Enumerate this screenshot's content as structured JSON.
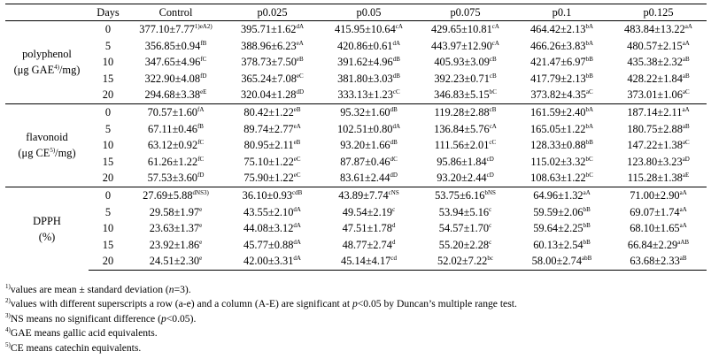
{
  "table": {
    "headers": [
      "",
      "Days",
      "Control",
      "p0.025",
      "p0.05",
      "p0.075",
      "p0.1",
      "p0.125"
    ],
    "groups": [
      {
        "label_main": "polyphenol",
        "label_unit_pre": "(μg GAE",
        "label_unit_sup": "4)",
        "label_unit_post": "/mg)",
        "rows": [
          {
            "day": "0",
            "cells": [
              [
                "377.10±7.77",
                "1)eA2)"
              ],
              [
                "395.71±1.62",
                "dA"
              ],
              [
                "415.95±10.64",
                "cA"
              ],
              [
                "429.65±10.81",
                "cA"
              ],
              [
                "464.42±2.13",
                "bA"
              ],
              [
                "483.84±13.22",
                "aA"
              ]
            ]
          },
          {
            "day": "5",
            "cells": [
              [
                "356.85±0.94",
                "fB"
              ],
              [
                "388.96±6.23",
                "eA"
              ],
              [
                "420.86±0.61",
                "dA"
              ],
              [
                "443.97±12.90",
                "cA"
              ],
              [
                "466.26±3.83",
                "bA"
              ],
              [
                "480.57±2.15",
                "aA"
              ]
            ]
          },
          {
            "day": "10",
            "cells": [
              [
                "347.65±4.96",
                "fC"
              ],
              [
                "378.73±7.50",
                "eB"
              ],
              [
                "391.62±4.96",
                "dB"
              ],
              [
                "405.93±3.09",
                "cB"
              ],
              [
                "421.47±6.97",
                "bB"
              ],
              [
                "435.38±2.32",
                "aB"
              ]
            ]
          },
          {
            "day": "15",
            "cells": [
              [
                "322.90±4.08",
                "fD"
              ],
              [
                "365.24±7.08",
                "eC"
              ],
              [
                "381.80±3.03",
                "dB"
              ],
              [
                "392.23±0.71",
                "cB"
              ],
              [
                "417.79±2.13",
                "bB"
              ],
              [
                "428.22±1.84",
                "aB"
              ]
            ]
          },
          {
            "day": "20",
            "cells": [
              [
                "294.68±3.38",
                "eE"
              ],
              [
                "320.04±1.28",
                "dD"
              ],
              [
                "333.13±1.23",
                "cC"
              ],
              [
                "346.83±5.15",
                "bC"
              ],
              [
                "373.82±4.35",
                "aC"
              ],
              [
                "373.01±1.06",
                "aC"
              ]
            ]
          }
        ]
      },
      {
        "label_main": "flavonoid",
        "label_unit_pre": "(μg CE",
        "label_unit_sup": "5)",
        "label_unit_post": "/mg)",
        "rows": [
          {
            "day": "0",
            "cells": [
              [
                "70.57±1.60",
                "fA"
              ],
              [
                "80.42±1.22",
                "eB"
              ],
              [
                "95.32±1.60",
                "dB"
              ],
              [
                "119.28±2.88",
                "cB"
              ],
              [
                "161.59±2.40",
                "bA"
              ],
              [
                "187.14±2.11",
                "aA"
              ]
            ]
          },
          {
            "day": "5",
            "cells": [
              [
                "67.11±0.46",
                "fB"
              ],
              [
                "89.74±2.77",
                "eA"
              ],
              [
                "102.51±0.80",
                "dA"
              ],
              [
                "136.84±5.76",
                "cA"
              ],
              [
                "165.05±1.22",
                "bA"
              ],
              [
                "180.75±2.88",
                "aB"
              ]
            ]
          },
          {
            "day": "10",
            "cells": [
              [
                "63.12±0.92",
                "fC"
              ],
              [
                "80.95±2.11",
                "eB"
              ],
              [
                "93.20±1.66",
                "dB"
              ],
              [
                "111.56±2.01",
                "cC"
              ],
              [
                "128.33±0.88",
                "bB"
              ],
              [
                "147.22±1.38",
                "aC"
              ]
            ]
          },
          {
            "day": "15",
            "cells": [
              [
                "61.26±1.22",
                "fC"
              ],
              [
                "75.10±1.22",
                "eC"
              ],
              [
                "87.87±0.46",
                "dC"
              ],
              [
                "95.86±1.84",
                "cD"
              ],
              [
                "115.02±3.32",
                "bC"
              ],
              [
                "123.80±3.23",
                "aD"
              ]
            ]
          },
          {
            "day": "20",
            "cells": [
              [
                "57.53±3.60",
                "fD"
              ],
              [
                "75.90±1.22",
                "eC"
              ],
              [
                "83.61±2.44",
                "dD"
              ],
              [
                "93.20±2.44",
                "cD"
              ],
              [
                "108.63±1.22",
                "bC"
              ],
              [
                "115.28±1.38",
                "aE"
              ]
            ]
          }
        ]
      },
      {
        "label_main": "DPPH",
        "label_unit_pre": "(%)",
        "label_unit_sup": "",
        "label_unit_post": "",
        "rows": [
          {
            "day": "0",
            "cells": [
              [
                "27.69±5.88",
                "dNS3)"
              ],
              [
                "36.10±0.93",
                "cdB"
              ],
              [
                "43.89±7.74",
                "cNS"
              ],
              [
                "53.75±6.16",
                "bNS"
              ],
              [
                "64.96±1.32",
                "aA"
              ],
              [
                "71.00±2.90",
                "aA"
              ]
            ]
          },
          {
            "day": "5",
            "cells": [
              [
                "29.58±1.97",
                "e"
              ],
              [
                "43.55±2.10",
                "dA"
              ],
              [
                "49.54±2.19",
                "c"
              ],
              [
                "53.94±5.16",
                "c"
              ],
              [
                "59.59±2.06",
                "bB"
              ],
              [
                "69.07±1.74",
                "aA"
              ]
            ]
          },
          {
            "day": "10",
            "cells": [
              [
                "23.63±1.37",
                "e"
              ],
              [
                "44.08±3.12",
                "dA"
              ],
              [
                "47.51±1.78",
                "d"
              ],
              [
                "54.57±1.70",
                "c"
              ],
              [
                "59.64±2.25",
                "bB"
              ],
              [
                "68.10±1.65",
                "aA"
              ]
            ]
          },
          {
            "day": "15",
            "cells": [
              [
                "23.92±1.86",
                "e"
              ],
              [
                "45.77±0.88",
                "dA"
              ],
              [
                "48.77±2.74",
                "d"
              ],
              [
                "55.20±2.28",
                "c"
              ],
              [
                "60.13±2.54",
                "bB"
              ],
              [
                "66.84±2.29",
                "aAB"
              ]
            ]
          },
          {
            "day": "20",
            "cells": [
              [
                "24.51±2.30",
                "e"
              ],
              [
                "42.00±3.31",
                "dA"
              ],
              [
                "45.14±4.17",
                "cd"
              ],
              [
                "52.02±7.22",
                "bc"
              ],
              [
                "58.00±2.74",
                "abB"
              ],
              [
                "63.68±2.33",
                "aB"
              ]
            ]
          }
        ]
      }
    ]
  },
  "footnotes": [
    {
      "sup": "1)",
      "pre": "values are mean ± standard deviation (",
      "ital": "n",
      "post": "=3)."
    },
    {
      "sup": "2)",
      "pre": "values with different superscripts a row (a-e) and a column (A-E) are significant at ",
      "ital": "p",
      "post": "<0.05 by Duncan’s multiple range test."
    },
    {
      "sup": "3)",
      "pre": "NS means no significant difference (",
      "ital": "p",
      "post": "<0.05)."
    },
    {
      "sup": "4)",
      "pre": "GAE means gallic acid equivalents.",
      "ital": "",
      "post": ""
    },
    {
      "sup": "5)",
      "pre": "CE means catechin equivalents.",
      "ital": "",
      "post": ""
    }
  ]
}
